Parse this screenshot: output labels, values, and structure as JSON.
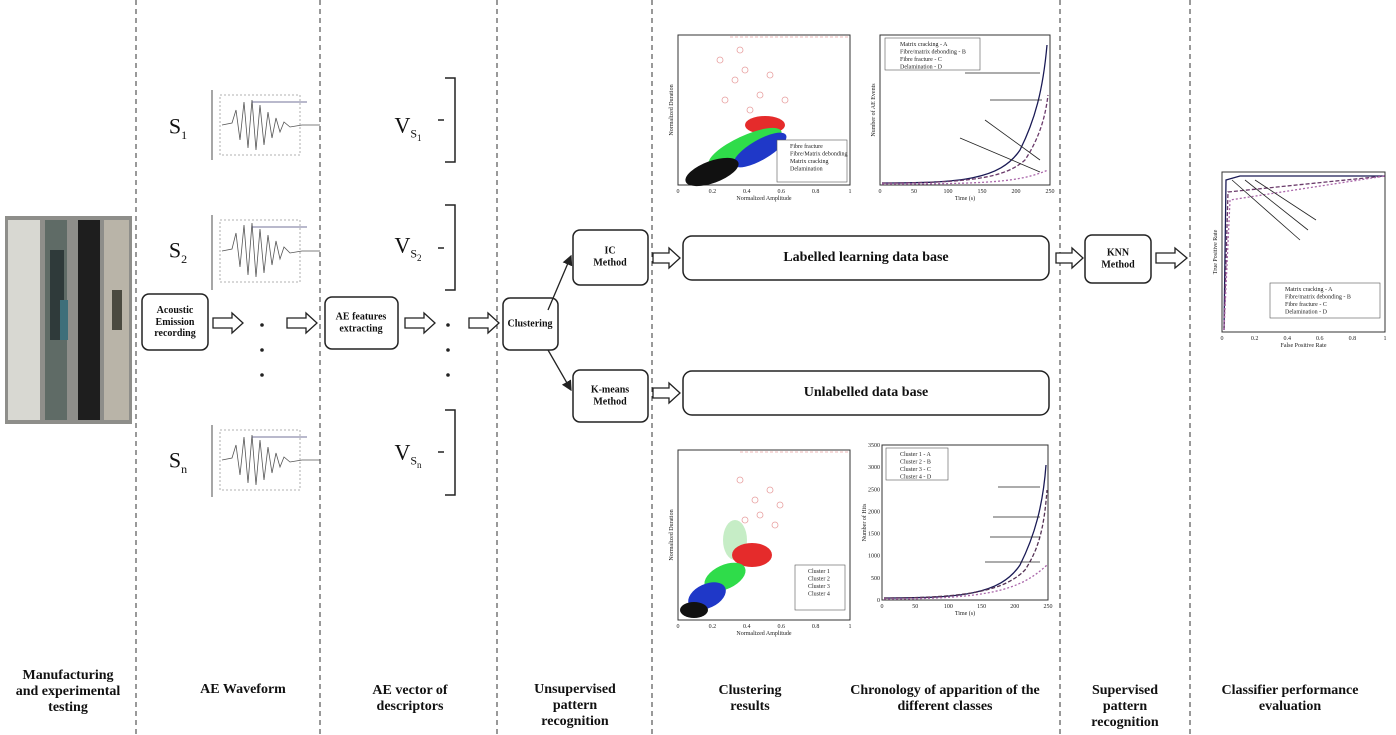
{
  "columns": [
    "Manufacturing and experimental testing",
    "AE Waveform",
    "AE vector of descriptors",
    "Unsupervised pattern recognition",
    "Clustering results",
    "Chronology of apparition of the different classes",
    "Supervised pattern recognition",
    "Classifier performance evaluation"
  ],
  "signals": [
    {
      "letter": "S",
      "index": "1"
    },
    {
      "letter": "S",
      "index": "2"
    },
    {
      "letter": "S",
      "index": "n"
    }
  ],
  "vectors": [
    {
      "letter": "V",
      "index": "S",
      "subindex": "1"
    },
    {
      "letter": "V",
      "index": "S",
      "subindex": "2"
    },
    {
      "letter": "V",
      "index": "S",
      "subindex": "n"
    }
  ],
  "boxes": {
    "recording": "Acoustic Emission recording",
    "extracting": "AE features extracting",
    "clustering": "Clustering",
    "ic": "IC Method",
    "kmeans": "K-means Method",
    "labelled": "Labelled learning data base",
    "unlabelled": "Unlabelled data base",
    "knn": "KNN Method"
  },
  "plots": {
    "scatter_labelled": {
      "xlabel": "Normalized Amplitude",
      "ylabel": "Normalized Duration",
      "xticks": [
        "0",
        "0.2",
        "0.4",
        "0.6",
        "0.8",
        "1"
      ],
      "legend": [
        "Fibre fracture",
        "Fibre/Matrix debonding",
        "Matrix cracking",
        "Delamination"
      ]
    },
    "chronology_labelled": {
      "xlabel": "Time (s)",
      "ylabel": "Number of AE Events",
      "xticks": [
        "0",
        "50",
        "100",
        "150",
        "200",
        "250"
      ],
      "legend": [
        "Matrix cracking - A",
        "Fibre/matrix debonding - B",
        "Fibre fracture - C",
        "Delamination - D"
      ]
    },
    "scatter_unlabelled": {
      "xlabel": "Normalized Amplitude",
      "ylabel": "Normalized Duration",
      "xticks": [
        "0",
        "0.2",
        "0.4",
        "0.6",
        "0.8",
        "1"
      ],
      "legend": [
        "Cluster 1",
        "Cluster 2",
        "Cluster 3",
        "Cluster 4"
      ]
    },
    "chronology_unlabelled": {
      "xlabel": "Time (s)",
      "ylabel": "Number of Hits",
      "xticks": [
        "0",
        "50",
        "100",
        "150",
        "200",
        "250"
      ],
      "yticks": [
        "0",
        "500",
        "1000",
        "1500",
        "2000",
        "2500",
        "3000",
        "3500"
      ],
      "legend": [
        "Cluster 1 - A",
        "Cluster 2 - B",
        "Cluster 3 - C",
        "Cluster 4 - D"
      ]
    },
    "roc": {
      "xlabel": "False Positive Rate",
      "ylabel": "True Positive Rate",
      "xticks": [
        "0",
        "0.2",
        "0.4",
        "0.6",
        "0.8",
        "1"
      ],
      "legend": [
        "Matrix cracking - A",
        "Fibre/matrix debonding - B",
        "Fibre fracture - C",
        "Delamination - D"
      ]
    }
  }
}
